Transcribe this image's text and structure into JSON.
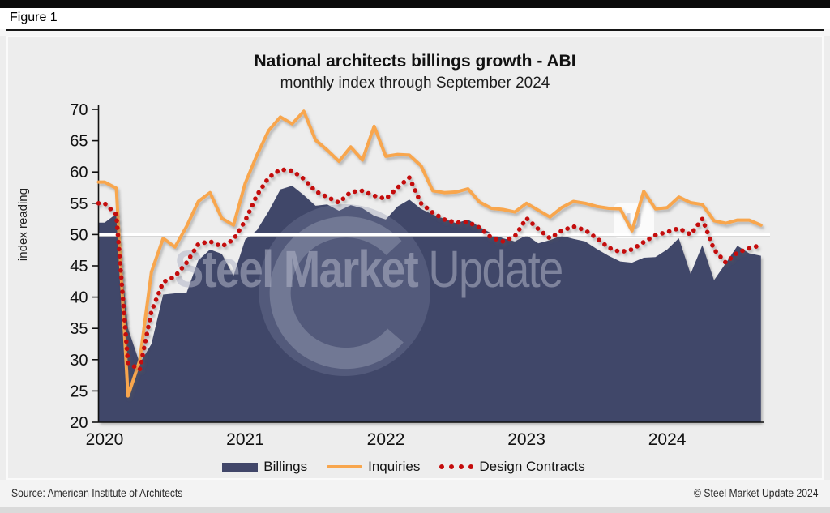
{
  "page": {
    "figure_label": "Figure 1",
    "source": "Source: American Institute of Architects",
    "copyright": "© Steel Market Update 2024"
  },
  "chart": {
    "title": "National architects billings growth - ABI",
    "subtitle": "monthly index through September 2024",
    "y_axis_label": "index reading"
  },
  "legend": {
    "billings": "Billings",
    "inquiries": "Inquiries",
    "design_contracts": "Design Contracts"
  },
  "watermark": {
    "text_bold": "Steel Market ",
    "text_light": "Update",
    "badge_letter": "U"
  },
  "colors": {
    "billings_area": "#414669",
    "inquiries_line": "#f8a64d",
    "design_contracts_dots": "#c40b0b",
    "reference_line": "#ffffff",
    "panel_background": "#ededed"
  },
  "chart_data": {
    "type": "area",
    "note": "monthly index values, Jan 2020 - Sep 2024",
    "x_start": "2020-01",
    "x_end": "2024-09",
    "year_labels": [
      "2020",
      "2021",
      "2022",
      "2023",
      "2024"
    ],
    "y_ticks": [
      20,
      25,
      30,
      35,
      40,
      45,
      50,
      55,
      60,
      65,
      70
    ],
    "ylim": [
      20,
      70
    ],
    "reference_line": 50,
    "grid": false,
    "legend_position": "bottom",
    "series": [
      {
        "name": "Billings",
        "type": "area",
        "color": "#414669",
        "values": [
          51.9,
          53.3,
          35.0,
          29.4,
          32.5,
          40.4,
          40.6,
          40.7,
          45.9,
          47.6,
          46.9,
          43.4,
          49.2,
          50.7,
          53.7,
          57.2,
          57.8,
          56.3,
          54.6,
          54.8,
          53.8,
          54.7,
          54.2,
          53.0,
          52.4,
          54.5,
          55.6,
          54.1,
          53.2,
          52.5,
          51.8,
          52.4,
          51.2,
          50.2,
          49.4,
          48.9,
          49.9,
          48.6,
          49.1,
          49.8,
          49.3,
          48.9,
          47.7,
          46.6,
          45.7,
          45.5,
          46.3,
          46.4,
          47.6,
          49.4,
          43.7,
          48.3,
          42.7,
          45.4,
          48.2,
          47.0,
          46.6
        ]
      },
      {
        "name": "Inquiries",
        "type": "line",
        "color": "#f8a64d",
        "values": [
          58.4,
          57.4,
          24.2,
          29.9,
          44.0,
          49.4,
          48.0,
          51.3,
          55.3,
          56.7,
          52.6,
          51.5,
          58.2,
          62.7,
          66.6,
          68.8,
          67.7,
          69.7,
          65.1,
          63.5,
          61.7,
          64.0,
          61.9,
          67.3,
          62.5,
          62.8,
          62.7,
          61.0,
          57.0,
          56.7,
          56.8,
          57.3,
          55.2,
          54.2,
          54.0,
          53.6,
          55.0,
          53.9,
          52.8,
          54.3,
          55.3,
          55.0,
          54.5,
          54.2,
          54.1,
          50.6,
          56.9,
          54.1,
          54.3,
          56.0,
          55.1,
          54.8,
          52.2,
          51.8,
          52.3,
          52.3,
          51.5
        ]
      },
      {
        "name": "Design Contracts",
        "type": "dotted-line",
        "color": "#c40b0b",
        "values": [
          55.0,
          53.2,
          29.5,
          28.4,
          37.7,
          42.4,
          43.3,
          45.5,
          48.5,
          48.9,
          48.1,
          49.2,
          52.2,
          56.3,
          59.1,
          60.4,
          60.2,
          58.9,
          56.9,
          56.0,
          55.1,
          56.8,
          57.0,
          56.2,
          55.7,
          57.5,
          59.1,
          55.0,
          53.5,
          52.4,
          51.9,
          52.0,
          51.1,
          49.5,
          48.9,
          49.7,
          52.6,
          50.9,
          49.4,
          50.6,
          51.3,
          50.7,
          49.4,
          47.9,
          47.2,
          47.6,
          48.8,
          49.9,
          50.4,
          51.0,
          50.0,
          52.5,
          47.6,
          45.5,
          47.1,
          47.8,
          48.3
        ]
      }
    ]
  }
}
